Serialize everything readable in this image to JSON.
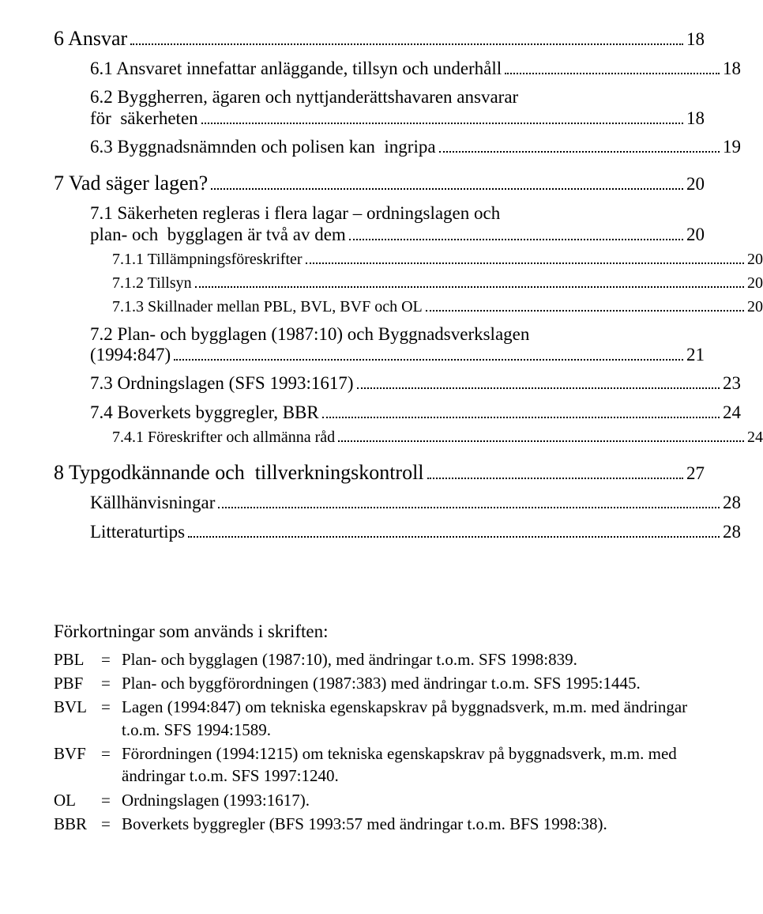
{
  "colors": {
    "text": "#000000",
    "background": "#ffffff"
  },
  "toc": {
    "i0": {
      "text": "6 Ansvar",
      "page": "18"
    },
    "i1": {
      "text": "6.1 Ansvaret innefattar anläggande, tillsyn och underhåll",
      "page": "18"
    },
    "i2a": {
      "text": "6.2 Byggherren, ägaren och  nyttjanderättshavaren ansvarar"
    },
    "i2b": {
      "text": "för  säkerheten",
      "page": "18"
    },
    "i3": {
      "text": "6.3 Byggnadsnämnden och polisen kan  ingripa",
      "page": "19"
    },
    "i4": {
      "text": "7 Vad säger lagen?",
      "page": "20"
    },
    "i5a": {
      "text": "7.1 Säkerheten regleras i flera lagar – ordningslagen och"
    },
    "i5b": {
      "text": "plan- och  bygglagen är två av dem",
      "page": "20"
    },
    "i6": {
      "text": "7.1.1 Tillämpningsföreskrifter",
      "page": "20"
    },
    "i7": {
      "text": "7.1.2 Tillsyn",
      "page": "20"
    },
    "i8": {
      "text": "7.1.3 Skillnader mellan PBL, BVL, BVF och OL",
      "page": "20"
    },
    "i9a": {
      "text": "7.2 Plan- och bygglagen (1987:10) och  Byggnadsverkslagen"
    },
    "i9b": {
      "text": "(1994:847)",
      "page": "21"
    },
    "i10": {
      "text": "7.3 Ordningslagen (SFS 1993:1617)",
      "page": "23"
    },
    "i11": {
      "text": "7.4 Boverkets byggregler, BBR",
      "page": "24"
    },
    "i12": {
      "text": "7.4.1 Föreskrifter och allmänna råd",
      "page": "24"
    },
    "i13": {
      "text": "8 Typgodkännande och  tillverkningskontroll",
      "page": "27"
    },
    "i14": {
      "text": "Källhänvisningar",
      "page": "28"
    },
    "i15": {
      "text": "Litteraturtips",
      "page": "28"
    }
  },
  "abbrev": {
    "title": "Förkortningar som används i skriften:",
    "rows": {
      "r0": {
        "label": "PBL",
        "eq": "=",
        "def": "Plan- och bygglagen (1987:10), med ändringar t.o.m. SFS 1998:839."
      },
      "r1": {
        "label": "PBF",
        "eq": "=",
        "def": "Plan- och byggförordningen (1987:383) med ändringar t.o.m. SFS 1995:1445."
      },
      "r2": {
        "label": "BVL",
        "eq": "=",
        "def": "Lagen (1994:847) om tekniska egenskapskrav på byggnadsverk, m.m. med ändringar t.o.m. SFS 1994:1589."
      },
      "r3": {
        "label": "BVF",
        "eq": "=",
        "def": "Förordningen (1994:1215) om tekniska egenskapskrav på byggnadsverk, m.m. med ändringar t.o.m. SFS 1997:1240."
      },
      "r4": {
        "label": "OL",
        "eq": "=",
        "def": "Ordningslagen (1993:1617)."
      },
      "r5": {
        "label": "BBR",
        "eq": "=",
        "def": "Boverkets byggregler (BFS 1993:57 med ändringar t.o.m. BFS 1998:38)."
      }
    }
  }
}
